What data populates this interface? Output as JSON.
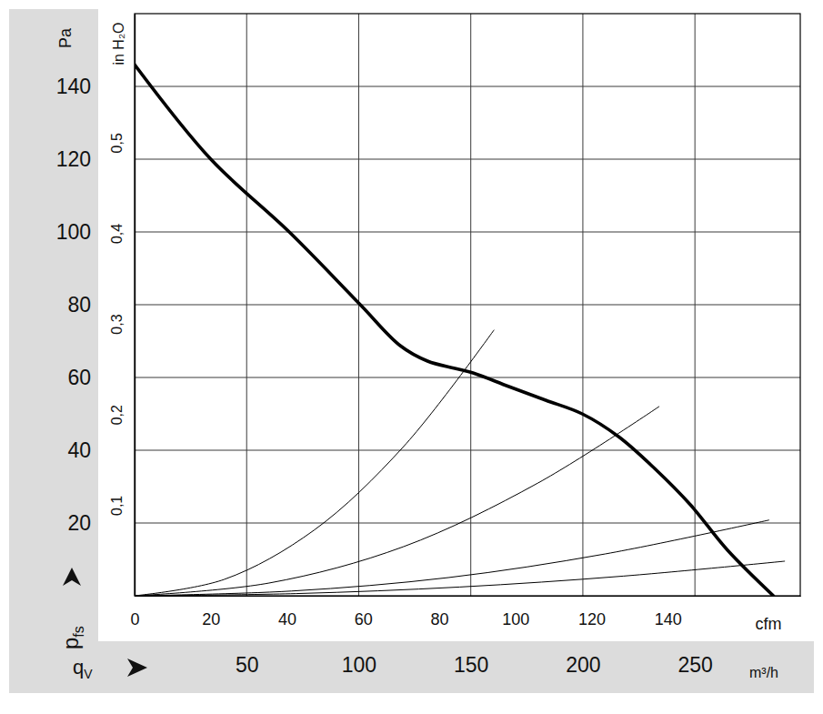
{
  "chart_data": {
    "type": "line",
    "y_unit_label": "Pa",
    "y2_unit_label": "in H₂O",
    "y_symbol": "p",
    "y_symbol_subscript": "fs",
    "x_symbol": "q",
    "x_symbol_subscript": "V",
    "x_unit_label": "m³/h",
    "x2_unit_label": "cfm",
    "xlim": [
      0,
      297
    ],
    "xticks": [
      50,
      100,
      150,
      200,
      250
    ],
    "x2lim": [
      0,
      174.8
    ],
    "x2ticks": [
      0,
      20,
      40,
      60,
      80,
      100,
      120,
      140
    ],
    "ylim": [
      0,
      160
    ],
    "yticks": [
      20,
      40,
      60,
      80,
      100,
      120,
      140
    ],
    "y2lim": [
      0,
      0.6423
    ],
    "y2ticks": [
      {
        "value": 0.1,
        "label": "0,1"
      },
      {
        "value": 0.2,
        "label": "0,2"
      },
      {
        "value": 0.3,
        "label": "0,3"
      },
      {
        "value": 0.4,
        "label": "0,4"
      },
      {
        "value": 0.5,
        "label": "0,5"
      }
    ],
    "grid": true,
    "series": [
      {
        "color": "#000000",
        "line_style": "thick",
        "x": [
          0,
          34,
          69,
          100.7,
          118.5,
          130.7,
          142.9,
          151,
          167,
          183.4,
          199.7,
          215.9,
          232,
          248,
          264.6,
          285
        ],
        "values": [
          146,
          120,
          100,
          80,
          68.75,
          64.5,
          62.5,
          61.25,
          57.5,
          53.75,
          50,
          43.75,
          35,
          25,
          12.5,
          0
        ]
      },
      {
        "color": "#000000",
        "line_style": "thin",
        "x": [
          0,
          40,
          80,
          120,
          160.3
        ],
        "values": [
          0,
          4.5,
          18,
          41,
          73
        ]
      },
      {
        "color": "#000000",
        "line_style": "thin",
        "x": [
          0,
          60,
          120,
          180,
          234
        ],
        "values": [
          0,
          3.5,
          13.5,
          31,
          52
        ]
      },
      {
        "color": "#000000",
        "line_style": "thin",
        "x": [
          0,
          70,
          140,
          210,
          283
        ],
        "values": [
          0,
          1.3,
          5,
          11.5,
          20.8
        ]
      },
      {
        "color": "#000000",
        "line_style": "thin",
        "x": [
          0,
          72,
          145,
          218,
          290
        ],
        "values": [
          0,
          0.6,
          2.4,
          5.4,
          9.5
        ]
      }
    ]
  }
}
